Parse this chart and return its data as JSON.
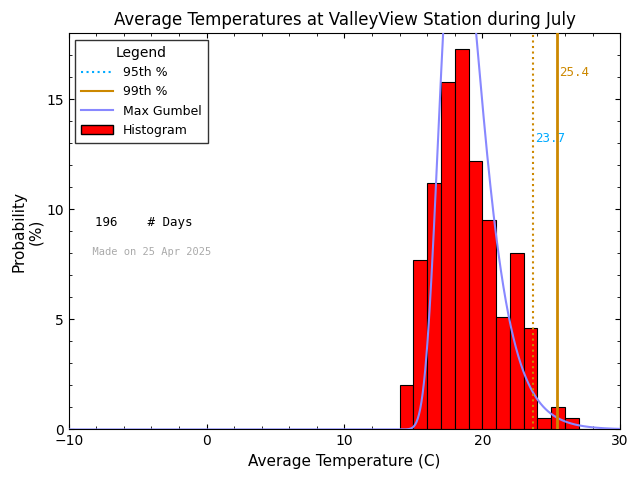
{
  "title": "Average Temperatures at ValleyView Station during July",
  "xlabel": "Average Temperature (C)",
  "ylabel": "Probability\n(%)",
  "xlim": [
    -10,
    30
  ],
  "ylim": [
    0,
    18
  ],
  "yticks": [
    0,
    5,
    10,
    15
  ],
  "xticks": [
    -10,
    0,
    10,
    20,
    30
  ],
  "bin_edges": [
    14,
    15,
    16,
    17,
    18,
    19,
    20,
    21,
    22,
    23,
    24,
    25,
    26,
    27,
    28
  ],
  "bin_heights": [
    2.0,
    7.7,
    11.2,
    15.8,
    17.3,
    12.2,
    9.5,
    5.1,
    8.0,
    4.6,
    0.5,
    1.0,
    0.5,
    0.0
  ],
  "bar_color": "#ff0000",
  "bar_edgecolor": "#000000",
  "gumbel_color": "#8888ff",
  "percentile_95_value": 23.7,
  "percentile_95_color": "#cc8800",
  "percentile_95_label": "23.7",
  "percentile_95_textcolor": "#00aaff",
  "percentile_99_value": 25.4,
  "percentile_99_color": "#cc8800",
  "percentile_99_label": "25.4",
  "n_days": 196,
  "made_on": "Made on 25 Apr 2025",
  "legend_title": "Legend",
  "bg_color": "#ffffff",
  "mu": 18.2,
  "beta": 1.5
}
